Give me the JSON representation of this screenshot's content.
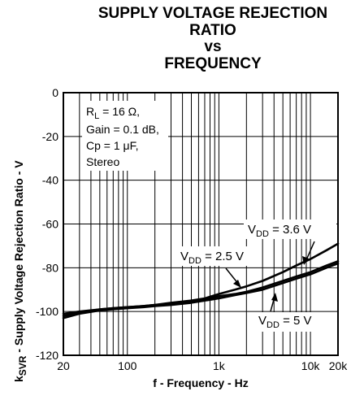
{
  "chart_data": {
    "type": "line",
    "title_lines": [
      "SUPPLY VOLTAGE REJECTION",
      "RATIO",
      "vs",
      "FREQUENCY"
    ],
    "xlabel": "f - Frequency - Hz",
    "ylabel": {
      "prefix": "k",
      "sub": "SVR",
      "rest": " - Supply Voltage Rejection Ratio - V"
    },
    "x_scale": "log",
    "xlim": [
      20,
      20000
    ],
    "ylim": [
      -120,
      0
    ],
    "x_ticks": [
      {
        "value": 20,
        "label": "20"
      },
      {
        "value": 100,
        "label": "100"
      },
      {
        "value": 1000,
        "label": "1k"
      },
      {
        "value": 10000,
        "label": "10k"
      },
      {
        "value": 20000,
        "label": "20k"
      }
    ],
    "y_ticks": [
      0,
      -20,
      -40,
      -60,
      -80,
      -100,
      -120
    ],
    "grid": true,
    "conditions": [
      {
        "main": "R",
        "sub": "L",
        "rest": " = 16 Ω,"
      },
      {
        "main": "Gain = 0.1 dB,",
        "sub": "",
        "rest": ""
      },
      {
        "main": "Cp = 1 μF,",
        "sub": "",
        "rest": ""
      },
      {
        "main": "Stereo",
        "sub": "",
        "rest": ""
      }
    ],
    "series": [
      {
        "name": "VDD = 3.6 V",
        "label": {
          "main": "V",
          "sub": "DD",
          "rest": " = 3.6 V"
        },
        "x": [
          20,
          30,
          50,
          70,
          100,
          150,
          200,
          300,
          500,
          700,
          1000,
          1500,
          2000,
          3000,
          5000,
          7000,
          10000,
          15000,
          20000
        ],
        "y": [
          -101,
          -100,
          -99,
          -98.5,
          -98,
          -97.5,
          -97,
          -96,
          -95,
          -94,
          -92,
          -90,
          -88.5,
          -86,
          -82,
          -79,
          -76,
          -72,
          -69
        ]
      },
      {
        "name": "VDD = 2.5 V",
        "label": {
          "main": "V",
          "sub": "DD",
          "rest": " = 2.5 V"
        },
        "x": [
          20,
          30,
          50,
          70,
          100,
          150,
          200,
          300,
          500,
          700,
          1000,
          1500,
          2000,
          3000,
          5000,
          7000,
          10000,
          15000,
          20000
        ],
        "y": [
          -102,
          -100.5,
          -99,
          -98.5,
          -98,
          -97.5,
          -97,
          -96.5,
          -95.5,
          -94.5,
          -93,
          -92,
          -91,
          -89,
          -86,
          -84,
          -82,
          -79,
          -77
        ]
      },
      {
        "name": "VDD = 5 V",
        "label": {
          "main": "V",
          "sub": "DD",
          "rest": " = 5 V"
        },
        "x": [
          20,
          30,
          50,
          70,
          100,
          150,
          200,
          300,
          500,
          700,
          1000,
          1500,
          2000,
          3000,
          5000,
          7000,
          10000,
          15000,
          20000
        ],
        "y": [
          -103,
          -101,
          -99.5,
          -99,
          -98.5,
          -98,
          -97.5,
          -97,
          -96,
          -95,
          -94,
          -92.5,
          -91.5,
          -90,
          -87,
          -85,
          -83,
          -80,
          -78
        ]
      }
    ]
  }
}
